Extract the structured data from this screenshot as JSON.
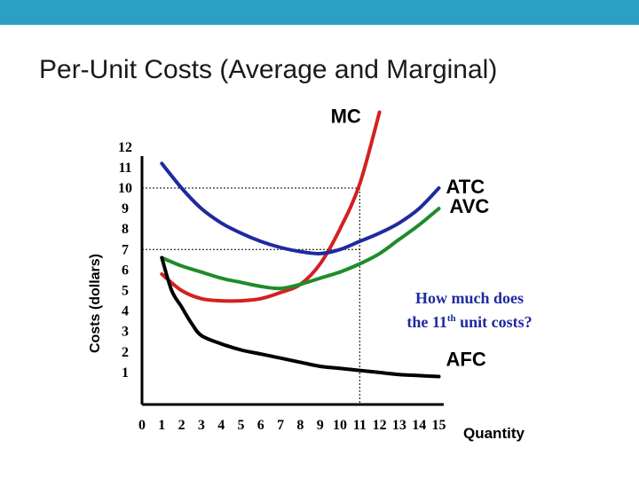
{
  "slide": {
    "title": "Per-Unit Costs (Average and Marginal)",
    "top_bar_color": "#2aa0c4"
  },
  "chart_data": {
    "type": "line",
    "xlabel": "Quantity",
    "ylabel": "Costs (dollars)",
    "xlim": [
      0,
      15
    ],
    "ylim": [
      0,
      12
    ],
    "x_ticks": [
      "0",
      "1",
      "2",
      "3",
      "4",
      "5",
      "6",
      "7",
      "8",
      "9",
      "10",
      "11",
      "12",
      "13",
      "14",
      "15"
    ],
    "y_ticks": [
      "12",
      "11",
      "10",
      "9",
      "8",
      "7",
      "6",
      "5",
      "4",
      "3",
      "2",
      "1"
    ],
    "series": [
      {
        "name": "MC",
        "color": "#d42020",
        "points": [
          [
            1,
            5.8
          ],
          [
            2,
            5
          ],
          [
            3,
            4.6
          ],
          [
            4,
            4.5
          ],
          [
            5,
            4.5
          ],
          [
            6,
            4.6
          ],
          [
            7,
            4.9
          ],
          [
            8,
            5.3
          ],
          [
            9,
            6.3
          ],
          [
            10,
            8
          ],
          [
            11,
            10.2
          ],
          [
            12,
            13.7
          ]
        ]
      },
      {
        "name": "ATC",
        "color": "#1f2a9e",
        "points": [
          [
            1,
            11.2
          ],
          [
            2,
            10
          ],
          [
            3,
            9
          ],
          [
            4,
            8.3
          ],
          [
            5,
            7.8
          ],
          [
            6,
            7.4
          ],
          [
            7,
            7.1
          ],
          [
            8,
            6.9
          ],
          [
            9,
            6.8
          ],
          [
            10,
            7
          ],
          [
            11,
            7.4
          ],
          [
            12,
            7.8
          ],
          [
            13,
            8.3
          ],
          [
            14,
            9
          ],
          [
            15,
            10
          ]
        ]
      },
      {
        "name": "AVC",
        "color": "#1e8c2a",
        "points": [
          [
            1,
            6.6
          ],
          [
            2,
            6.2
          ],
          [
            3,
            5.9
          ],
          [
            4,
            5.6
          ],
          [
            5,
            5.4
          ],
          [
            6,
            5.2
          ],
          [
            7,
            5.1
          ],
          [
            8,
            5.3
          ],
          [
            9,
            5.6
          ],
          [
            10,
            5.9
          ],
          [
            11,
            6.3
          ],
          [
            12,
            6.8
          ],
          [
            13,
            7.5
          ],
          [
            14,
            8.2
          ],
          [
            15,
            9
          ]
        ]
      },
      {
        "name": "AFC",
        "color": "#000000",
        "points": [
          [
            1,
            6.6
          ],
          [
            1.5,
            5
          ],
          [
            2,
            4.2
          ],
          [
            2.5,
            3.4
          ],
          [
            3,
            2.8
          ],
          [
            4,
            2.4
          ],
          [
            5,
            2.1
          ],
          [
            6,
            1.9
          ],
          [
            7,
            1.7
          ],
          [
            8,
            1.5
          ],
          [
            9,
            1.3
          ],
          [
            10,
            1.2
          ],
          [
            11,
            1.1
          ],
          [
            12,
            1.0
          ],
          [
            13,
            0.9
          ],
          [
            14,
            0.85
          ],
          [
            15,
            0.8
          ]
        ]
      }
    ],
    "reference_lines": {
      "x": 11,
      "y": [
        10,
        7
      ]
    },
    "annotation": {
      "line1": "How much does",
      "line2_start": "the 11",
      "line2_sup": "th",
      "line2_end": " unit costs?",
      "color": "#1f2a9e"
    }
  }
}
